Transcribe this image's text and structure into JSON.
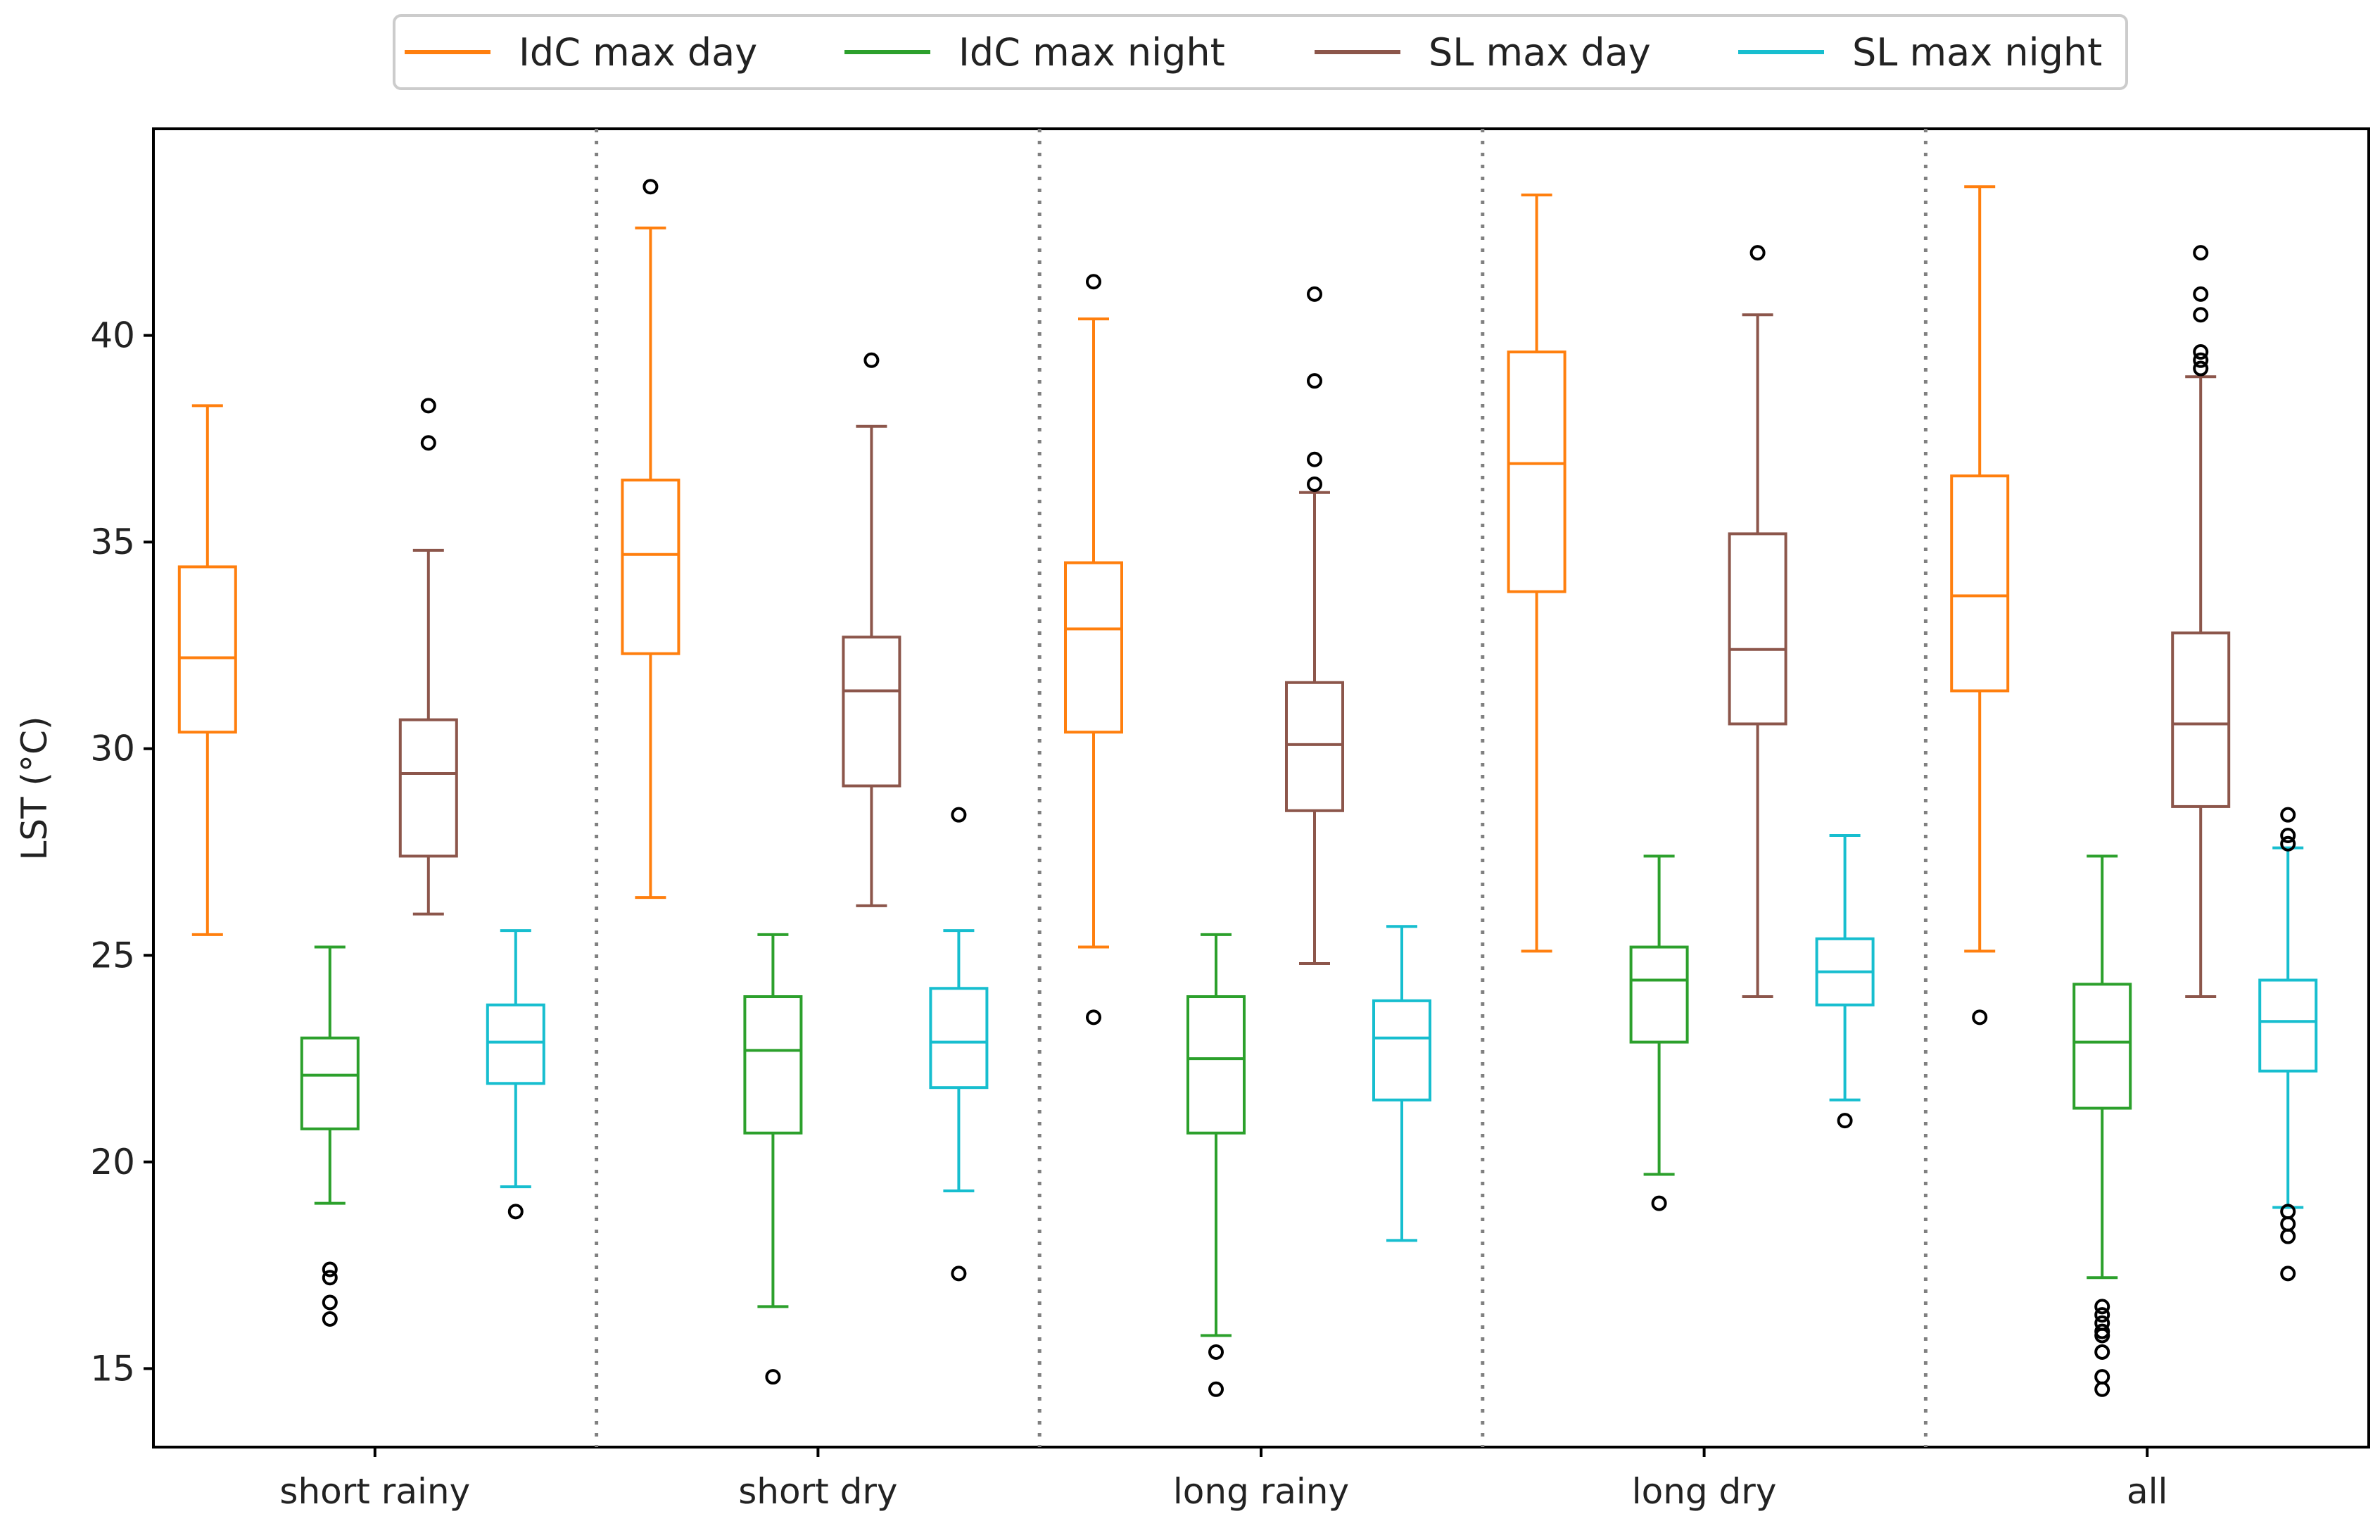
{
  "chart_data": {
    "type": "boxplot",
    "title": "",
    "xlabel": "",
    "ylabel": "LST (°C)",
    "ylim": [
      13.1,
      45.0
    ],
    "yticks": [
      15,
      20,
      25,
      30,
      35,
      40
    ],
    "categories": [
      "short rainy",
      "short dry",
      "long rainy",
      "long dry",
      "all"
    ],
    "legend_position": "top-center",
    "series": [
      {
        "name": "IdC max day",
        "color": "#ff7f0e",
        "boxes": [
          {
            "whisker_low": 25.5,
            "q1": 30.4,
            "median": 32.2,
            "q3": 34.4,
            "whisker_high": 38.3,
            "outliers": []
          },
          {
            "whisker_low": 26.4,
            "q1": 32.3,
            "median": 34.7,
            "q3": 36.5,
            "whisker_high": 42.6,
            "outliers": [
              43.6
            ]
          },
          {
            "whisker_low": 25.2,
            "q1": 30.4,
            "median": 32.9,
            "q3": 34.5,
            "whisker_high": 40.4,
            "outliers": [
              41.3,
              23.5
            ]
          },
          {
            "whisker_low": 25.1,
            "q1": 33.8,
            "median": 36.9,
            "q3": 39.6,
            "whisker_high": 43.4,
            "outliers": []
          },
          {
            "whisker_low": 25.1,
            "q1": 31.4,
            "median": 33.7,
            "q3": 36.6,
            "whisker_high": 43.6,
            "outliers": [
              23.5
            ]
          }
        ]
      },
      {
        "name": "IdC max night",
        "color": "#2ca02c",
        "boxes": [
          {
            "whisker_low": 19.0,
            "q1": 20.8,
            "median": 22.1,
            "q3": 23.0,
            "whisker_high": 25.2,
            "outliers": [
              17.4,
              17.2,
              16.6,
              16.2
            ]
          },
          {
            "whisker_low": 16.5,
            "q1": 20.7,
            "median": 22.7,
            "q3": 24.0,
            "whisker_high": 25.5,
            "outliers": [
              14.8
            ]
          },
          {
            "whisker_low": 15.8,
            "q1": 20.7,
            "median": 22.5,
            "q3": 24.0,
            "whisker_high": 25.5,
            "outliers": [
              15.4,
              14.5
            ]
          },
          {
            "whisker_low": 19.7,
            "q1": 22.9,
            "median": 24.4,
            "q3": 25.2,
            "whisker_high": 27.4,
            "outliers": [
              19.0
            ]
          },
          {
            "whisker_low": 17.2,
            "q1": 21.3,
            "median": 22.9,
            "q3": 24.3,
            "whisker_high": 27.4,
            "outliers": [
              16.5,
              16.3,
              16.1,
              15.9,
              15.8,
              15.4,
              14.8,
              14.5
            ]
          }
        ]
      },
      {
        "name": "SL max day",
        "color": "#8c564b",
        "boxes": [
          {
            "whisker_low": 26.0,
            "q1": 27.4,
            "median": 29.4,
            "q3": 30.7,
            "whisker_high": 34.8,
            "outliers": [
              38.3,
              37.4
            ]
          },
          {
            "whisker_low": 26.2,
            "q1": 29.1,
            "median": 31.4,
            "q3": 32.7,
            "whisker_high": 37.8,
            "outliers": [
              39.4
            ]
          },
          {
            "whisker_low": 24.8,
            "q1": 28.5,
            "median": 30.1,
            "q3": 31.6,
            "whisker_high": 36.2,
            "outliers": [
              41.0,
              38.9,
              37.0,
              36.4
            ]
          },
          {
            "whisker_low": 24.0,
            "q1": 30.6,
            "median": 32.4,
            "q3": 35.2,
            "whisker_high": 40.5,
            "outliers": [
              42.0
            ]
          },
          {
            "whisker_low": 24.0,
            "q1": 28.6,
            "median": 30.6,
            "q3": 32.8,
            "whisker_high": 39.0,
            "outliers": [
              42.0,
              41.0,
              40.5,
              39.6,
              39.4,
              39.2
            ]
          }
        ]
      },
      {
        "name": "SL max night",
        "color": "#17becf",
        "boxes": [
          {
            "whisker_low": 19.4,
            "q1": 21.9,
            "median": 22.9,
            "q3": 23.8,
            "whisker_high": 25.6,
            "outliers": [
              18.8
            ]
          },
          {
            "whisker_low": 19.3,
            "q1": 21.8,
            "median": 22.9,
            "q3": 24.2,
            "whisker_high": 25.6,
            "outliers": [
              28.4,
              17.3
            ]
          },
          {
            "whisker_low": 18.1,
            "q1": 21.5,
            "median": 23.0,
            "q3": 23.9,
            "whisker_high": 25.7,
            "outliers": []
          },
          {
            "whisker_low": 21.5,
            "q1": 23.8,
            "median": 24.6,
            "q3": 25.4,
            "whisker_high": 27.9,
            "outliers": [
              21.0
            ]
          },
          {
            "whisker_low": 18.9,
            "q1": 22.2,
            "median": 23.4,
            "q3": 24.4,
            "whisker_high": 27.6,
            "outliers": [
              28.4,
              27.9,
              27.7,
              18.8,
              18.5,
              18.2,
              17.3
            ]
          }
        ]
      }
    ]
  }
}
